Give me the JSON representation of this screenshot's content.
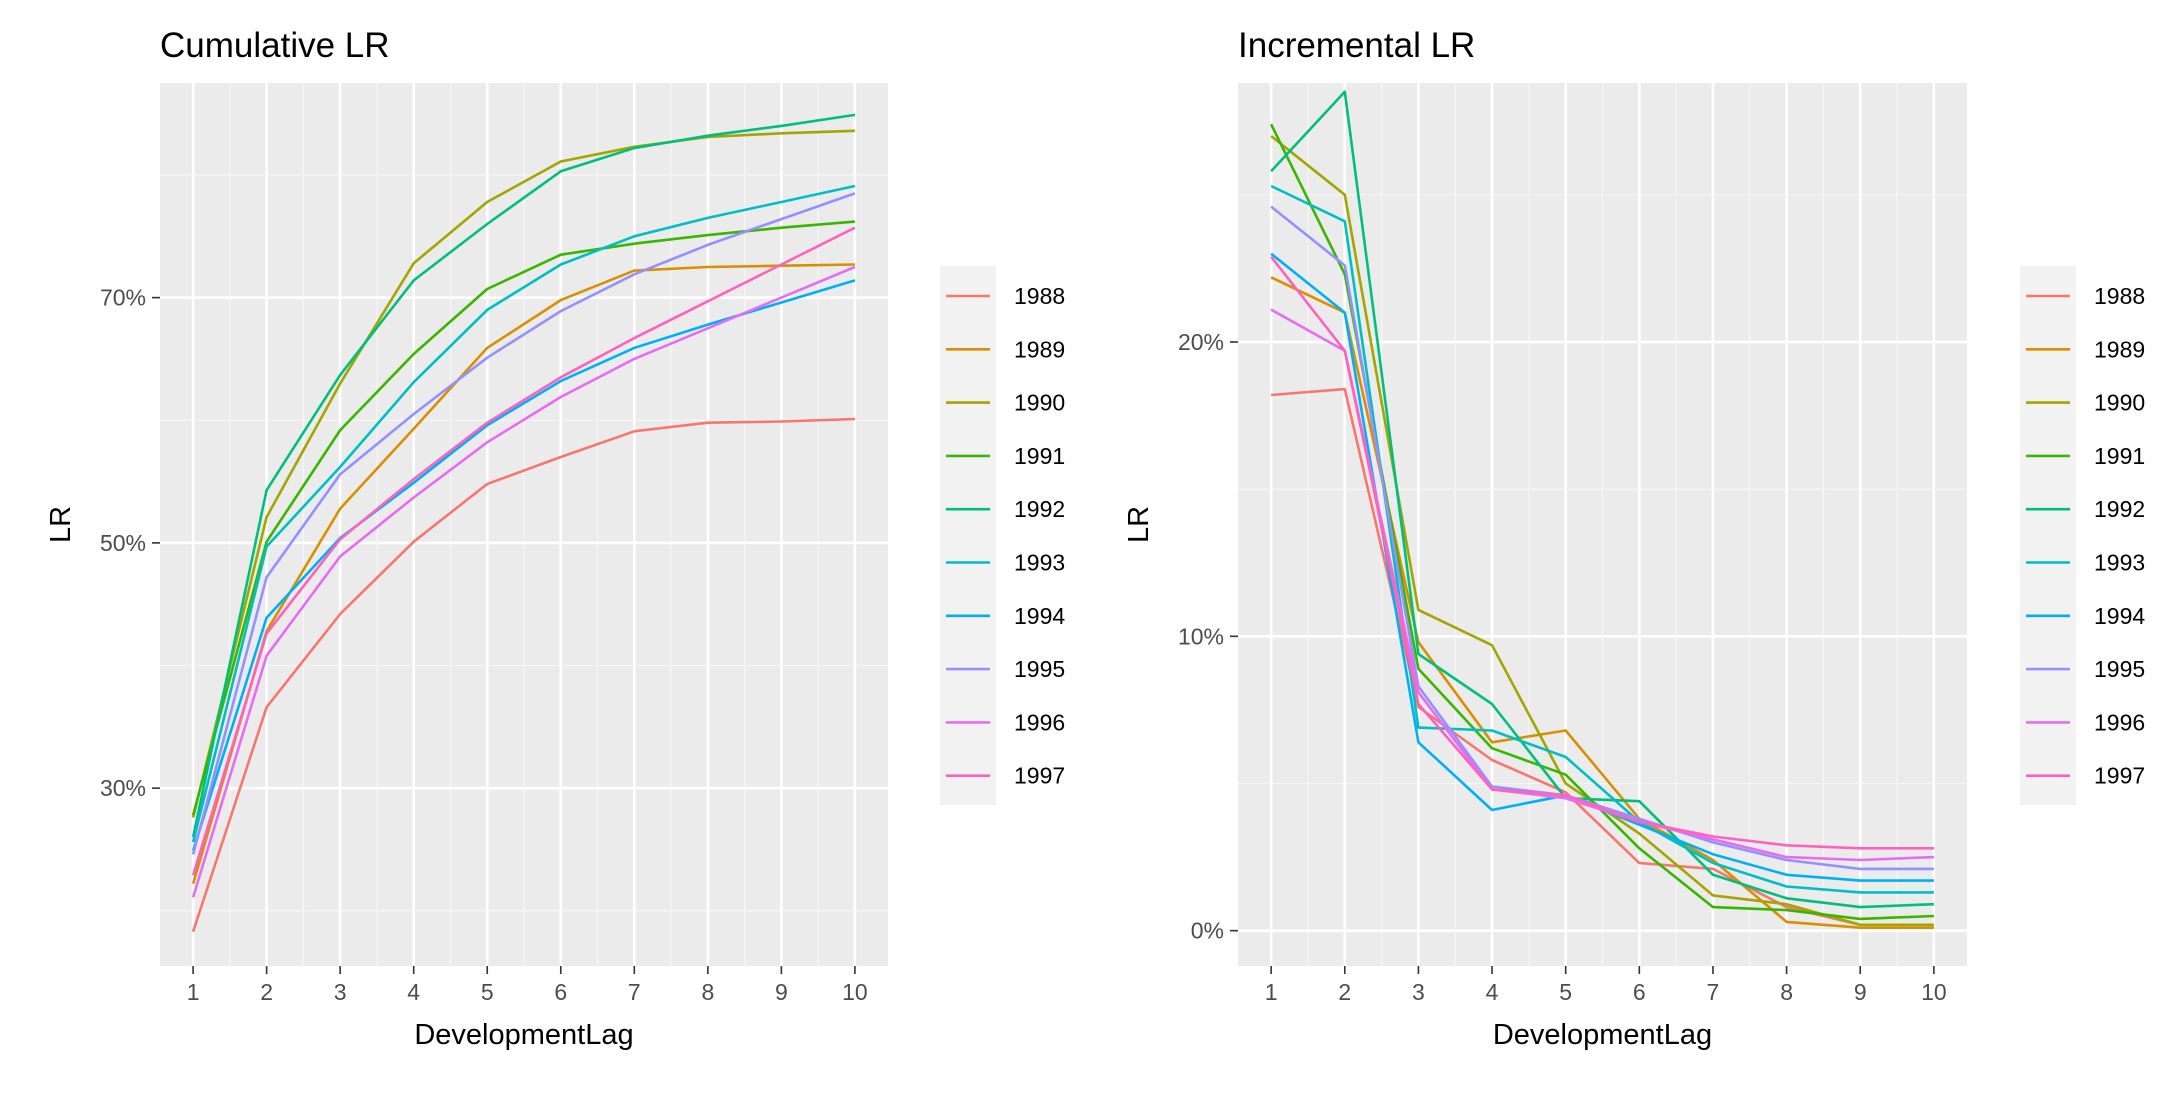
{
  "colors": {
    "panel_bg": "#EBEBEB",
    "grid_major": "#FFFFFF",
    "grid_minor": "#F5F5F5",
    "tick_text": "#4D4D4D",
    "text": "#000000"
  },
  "legend": {
    "entries": [
      "1988",
      "1989",
      "1990",
      "1991",
      "1992",
      "1993",
      "1994",
      "1995",
      "1996",
      "1997"
    ],
    "colors": [
      "#F8766D",
      "#D89000",
      "#A3A500",
      "#39B600",
      "#00BF7D",
      "#00BFC4",
      "#00B0F6",
      "#9590FF",
      "#E76BF3",
      "#FF62BC"
    ]
  },
  "chart_data": [
    {
      "type": "line",
      "title": "Cumulative LR",
      "xlabel": "DevelopmentLag",
      "ylabel": "LR",
      "x": [
        1,
        2,
        3,
        4,
        5,
        6,
        7,
        8,
        9,
        10
      ],
      "xlim": [
        0.55,
        10.45
      ],
      "ylim": [
        0.155,
        0.875
      ],
      "y_ticks": [
        0.3,
        0.5,
        0.7
      ],
      "y_tick_labels": [
        "30%",
        "50%",
        "70%"
      ],
      "y_minor_ticks": [
        0.2,
        0.4,
        0.6,
        0.8
      ],
      "series": [
        {
          "name": "1988",
          "values": [
            0.183,
            0.366,
            0.442,
            0.501,
            0.548,
            0.57,
            0.591,
            0.598,
            0.599,
            0.601
          ]
        },
        {
          "name": "1989",
          "values": [
            0.222,
            0.428,
            0.528,
            0.593,
            0.659,
            0.698,
            0.722,
            0.725,
            0.726,
            0.727
          ]
        },
        {
          "name": "1990",
          "values": [
            0.276,
            0.521,
            0.63,
            0.728,
            0.778,
            0.811,
            0.823,
            0.831,
            0.834,
            0.836
          ]
        },
        {
          "name": "1991",
          "values": [
            0.278,
            0.501,
            0.592,
            0.654,
            0.707,
            0.735,
            0.744,
            0.751,
            0.757,
            0.762
          ]
        },
        {
          "name": "1992",
          "values": [
            0.26,
            0.543,
            0.637,
            0.714,
            0.76,
            0.803,
            0.822,
            0.832,
            0.84,
            0.849
          ]
        },
        {
          "name": "1993",
          "values": [
            0.256,
            0.497,
            0.562,
            0.631,
            0.69,
            0.727,
            0.75,
            0.765,
            0.778,
            0.791
          ]
        },
        {
          "name": "1994",
          "values": [
            0.249,
            0.439,
            0.504,
            0.549,
            0.596,
            0.632,
            0.659,
            0.678,
            0.696,
            0.714
          ]
        },
        {
          "name": "1995",
          "values": [
            0.246,
            0.472,
            0.556,
            0.605,
            0.651,
            0.689,
            0.719,
            0.743,
            0.764,
            0.785
          ]
        },
        {
          "name": "1996",
          "values": [
            0.211,
            0.408,
            0.489,
            0.537,
            0.582,
            0.619,
            0.65,
            0.675,
            0.7,
            0.725
          ]
        },
        {
          "name": "1997",
          "values": [
            0.229,
            0.426,
            0.503,
            0.552,
            0.598,
            0.635,
            0.667,
            0.697,
            0.727,
            0.757
          ]
        }
      ]
    },
    {
      "type": "line",
      "title": "Incremental LR",
      "xlabel": "DevelopmentLag",
      "ylabel": "LR",
      "x": [
        1,
        2,
        3,
        4,
        5,
        6,
        7,
        8,
        9,
        10
      ],
      "xlim": [
        0.55,
        10.45
      ],
      "ylim": [
        -0.012,
        0.288
      ],
      "y_ticks": [
        0.0,
        0.1,
        0.2
      ],
      "y_tick_labels": [
        "0%",
        "10%",
        "20%"
      ],
      "y_minor_ticks": [
        0.05,
        0.15,
        0.25
      ],
      "series": [
        {
          "name": "1988",
          "values": [
            0.182,
            0.184,
            0.076,
            0.058,
            0.047,
            0.023,
            0.021,
            0.008,
            0.002,
            0.002
          ]
        },
        {
          "name": "1989",
          "values": [
            0.222,
            0.21,
            0.098,
            0.064,
            0.068,
            0.038,
            0.024,
            0.003,
            0.001,
            0.001
          ]
        },
        {
          "name": "1990",
          "values": [
            0.27,
            0.25,
            0.109,
            0.097,
            0.05,
            0.033,
            0.012,
            0.009,
            0.002,
            0.002
          ]
        },
        {
          "name": "1991",
          "values": [
            0.274,
            0.223,
            0.089,
            0.062,
            0.053,
            0.028,
            0.008,
            0.007,
            0.004,
            0.005
          ]
        },
        {
          "name": "1992",
          "values": [
            0.258,
            0.285,
            0.094,
            0.077,
            0.045,
            0.044,
            0.019,
            0.011,
            0.008,
            0.009
          ]
        },
        {
          "name": "1993",
          "values": [
            0.253,
            0.241,
            0.069,
            0.068,
            0.059,
            0.037,
            0.023,
            0.015,
            0.013,
            0.013
          ]
        },
        {
          "name": "1994",
          "values": [
            0.23,
            0.21,
            0.064,
            0.041,
            0.046,
            0.036,
            0.026,
            0.019,
            0.017,
            0.017
          ]
        },
        {
          "name": "1995",
          "values": [
            0.246,
            0.226,
            0.083,
            0.049,
            0.046,
            0.038,
            0.03,
            0.024,
            0.021,
            0.021
          ]
        },
        {
          "name": "1996",
          "values": [
            0.211,
            0.197,
            0.081,
            0.048,
            0.045,
            0.037,
            0.031,
            0.025,
            0.024,
            0.025
          ]
        },
        {
          "name": "1997",
          "values": [
            0.229,
            0.197,
            0.077,
            0.048,
            0.046,
            0.037,
            0.032,
            0.029,
            0.028,
            0.028
          ]
        }
      ]
    }
  ]
}
